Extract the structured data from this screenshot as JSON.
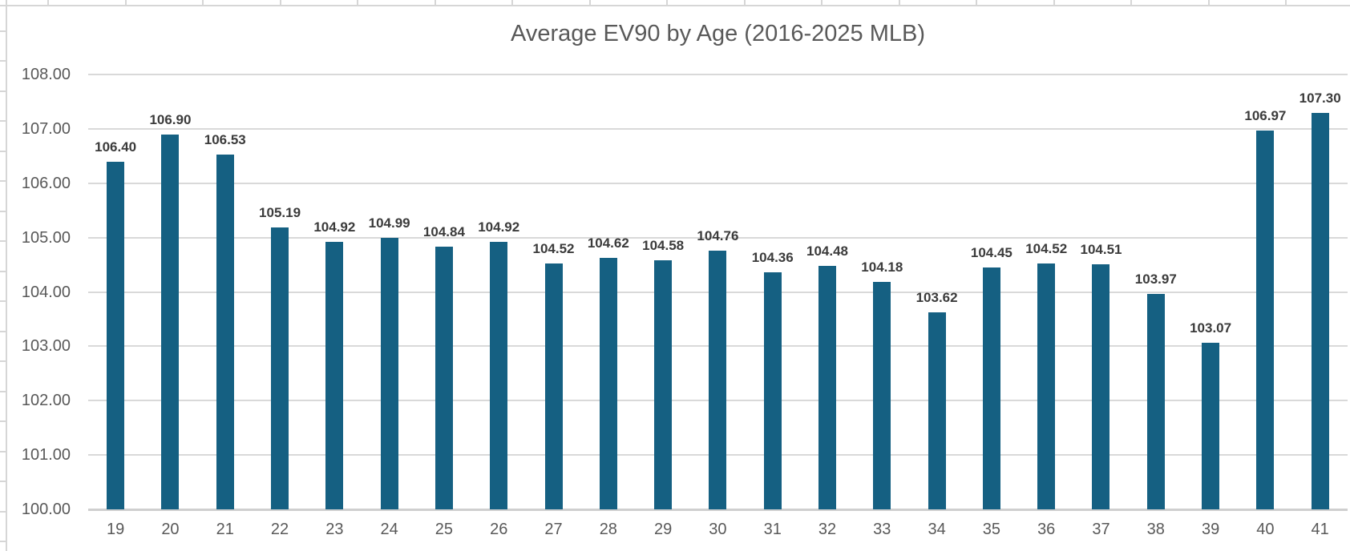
{
  "spreadsheet": {
    "gridline_color": "#d6d6d6",
    "column_stub_spacing": 96.5,
    "row_stub_spacing": 37.5
  },
  "chart": {
    "colors": {
      "bar_fill": "#156082",
      "title_text": "#595959",
      "axis_text": "#595959",
      "data_label_text": "#3b3b3b",
      "gridline": "#d9d9d9",
      "axis_line": "#cfcfcf"
    }
  },
  "chart_data": {
    "type": "bar",
    "title": "Average EV90 by Age (2016-2025 MLB)",
    "xlabel": "",
    "ylabel": "",
    "categories": [
      "19",
      "20",
      "21",
      "22",
      "23",
      "24",
      "25",
      "26",
      "27",
      "28",
      "29",
      "30",
      "31",
      "32",
      "33",
      "34",
      "35",
      "36",
      "37",
      "38",
      "39",
      "40",
      "41"
    ],
    "values": [
      106.4,
      106.9,
      106.53,
      105.19,
      104.92,
      104.99,
      104.84,
      104.92,
      104.52,
      104.62,
      104.58,
      104.76,
      104.36,
      104.48,
      104.18,
      103.62,
      104.45,
      104.52,
      104.51,
      103.97,
      103.07,
      106.97,
      107.3
    ],
    "data_labels": [
      "106.40",
      "106.90",
      "106.53",
      "105.19",
      "104.92",
      "104.99",
      "104.84",
      "104.92",
      "104.52",
      "104.62",
      "104.58",
      "104.76",
      "104.36",
      "104.48",
      "104.18",
      "103.62",
      "104.45",
      "104.52",
      "104.51",
      "103.97",
      "103.07",
      "106.97",
      "107.30"
    ],
    "ylim": [
      100,
      108
    ],
    "ytick_step": 1,
    "ytick_labels": [
      "100.00",
      "101.00",
      "102.00",
      "103.00",
      "104.00",
      "105.00",
      "106.00",
      "107.00",
      "108.00"
    ],
    "grid": true,
    "legend": false,
    "data_labels_shown": true
  }
}
